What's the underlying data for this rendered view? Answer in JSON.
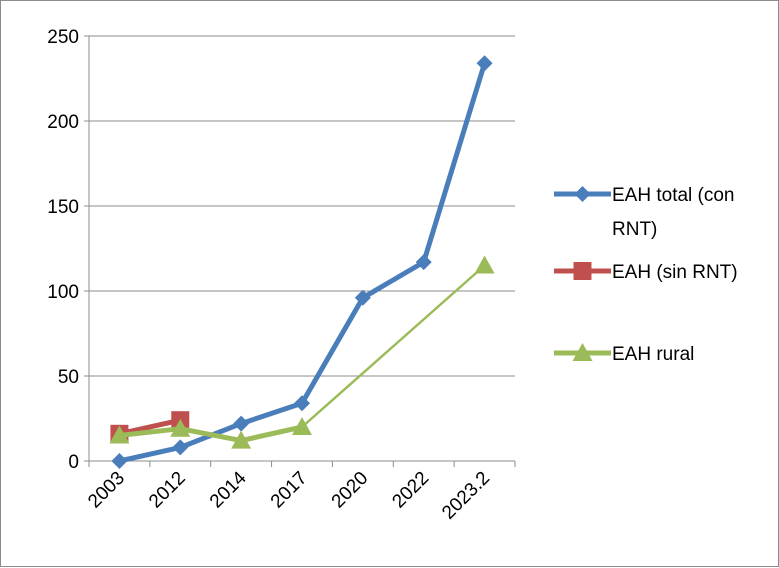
{
  "chart_data": {
    "type": "line",
    "categories": [
      "2003",
      "2012",
      "2014",
      "2017",
      "2020",
      "2022",
      "2023.2"
    ],
    "series": [
      {
        "name_lines": [
          "EAH total (con",
          "RNT)"
        ],
        "color": "#4a7ebb",
        "marker": "diamond",
        "line_width": "thick",
        "values": [
          0,
          8,
          22,
          34,
          96,
          117,
          234
        ]
      },
      {
        "name_lines": [
          "EAH (sin RNT)"
        ],
        "color": "#c0504d",
        "marker": "square",
        "line_width": "thick",
        "values": [
          16,
          24,
          null,
          null,
          null,
          null,
          null
        ]
      },
      {
        "name_lines": [
          "EAH rural"
        ],
        "color": "#9bbb59",
        "marker": "triangle",
        "line_width": "mixed",
        "values": [
          15,
          19,
          12,
          20,
          null,
          null,
          115
        ]
      }
    ],
    "y_ticks": [
      "0",
      "50",
      "100",
      "150",
      "200",
      "250"
    ],
    "ylim": [
      0,
      250
    ],
    "grid": "horizontal",
    "legend": "right"
  }
}
